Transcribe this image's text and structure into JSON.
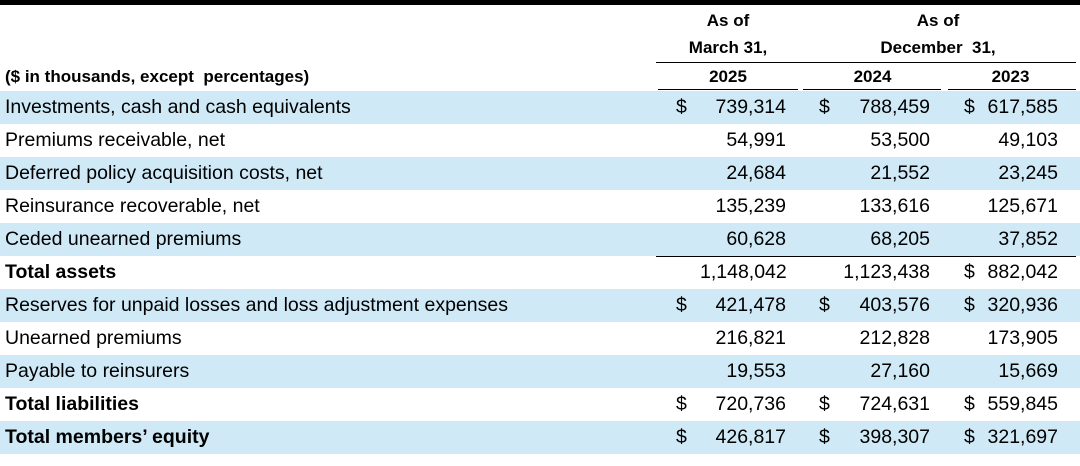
{
  "header": {
    "col1_line1": "As of",
    "col1_line2": "March 31,",
    "col1_year": "2025",
    "col23_line1": "As of",
    "col23_line2": "December  31,",
    "col2_year": "2024",
    "col3_year": "2023",
    "units_label": "($ in thousands, except  percentages)"
  },
  "rows": [
    {
      "label": "Investments, cash and cash equivalents",
      "c1_cur": "$",
      "c1": "739,314",
      "c2_cur": "$",
      "c2": "788,459",
      "c3_cur": "$",
      "c3": "617,585"
    },
    {
      "label": "Premiums receivable, net",
      "c1_cur": "",
      "c1": "54,991",
      "c2_cur": "",
      "c2": "53,500",
      "c3_cur": "",
      "c3": "49,103"
    },
    {
      "label": "Deferred policy acquisition costs, net",
      "c1_cur": "",
      "c1": "24,684",
      "c2_cur": "",
      "c2": "21,552",
      "c3_cur": "",
      "c3": "23,245"
    },
    {
      "label": "Reinsurance recoverable, net",
      "c1_cur": "",
      "c1": "135,239",
      "c2_cur": "",
      "c2": "133,616",
      "c3_cur": "",
      "c3": "125,671"
    },
    {
      "label": "Ceded unearned premiums",
      "c1_cur": "",
      "c1": "60,628",
      "c2_cur": "",
      "c2": "68,205",
      "c3_cur": "",
      "c3": "37,852"
    },
    {
      "label": "Total assets",
      "c1_cur": "",
      "c1": "1,148,042",
      "c2_cur": "",
      "c2": "1,123,438",
      "c3_cur": "$",
      "c3": "882,042"
    },
    {
      "label": "Reserves for unpaid losses and loss adjustment expenses",
      "c1_cur": "$",
      "c1": "421,478",
      "c2_cur": "$",
      "c2": "403,576",
      "c3_cur": "$",
      "c3": "320,936"
    },
    {
      "label": "Unearned premiums",
      "c1_cur": "",
      "c1": "216,821",
      "c2_cur": "",
      "c2": "212,828",
      "c3_cur": "",
      "c3": "173,905"
    },
    {
      "label": "Payable to reinsurers",
      "c1_cur": "",
      "c1": "19,553",
      "c2_cur": "",
      "c2": "27,160",
      "c3_cur": "",
      "c3": "15,669"
    },
    {
      "label": "Total liabilities",
      "c1_cur": "$",
      "c1": "720,736",
      "c2_cur": "$",
      "c2": "724,631",
      "c3_cur": "$",
      "c3": "559,845"
    },
    {
      "label": "Total members’ equity",
      "c1_cur": "$",
      "c1": "426,817",
      "c2_cur": "$",
      "c2": "398,307",
      "c3_cur": "$",
      "c3": "321,697"
    }
  ]
}
